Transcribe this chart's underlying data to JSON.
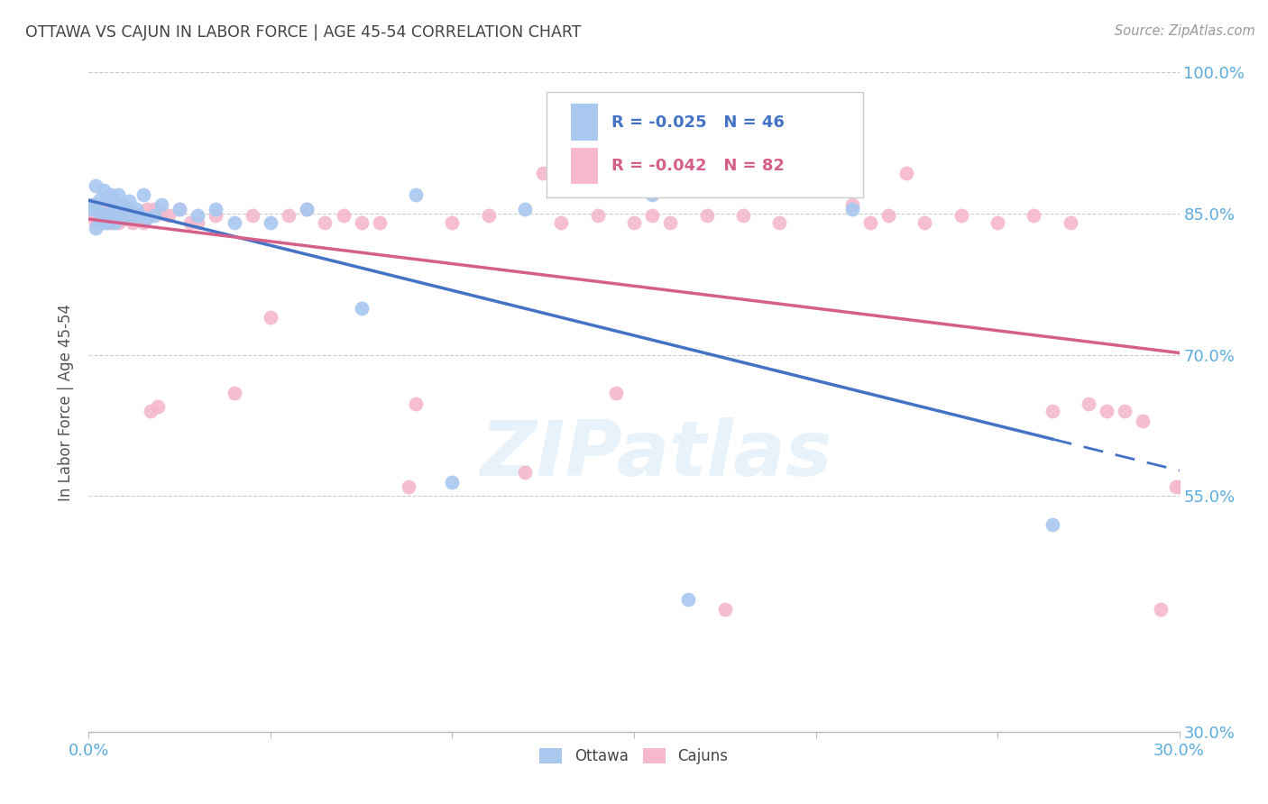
{
  "title": "OTTAWA VS CAJUN IN LABOR FORCE | AGE 45-54 CORRELATION CHART",
  "source_text": "Source: ZipAtlas.com",
  "ylabel": "In Labor Force | Age 45-54",
  "xlim": [
    0.0,
    0.3
  ],
  "ylim": [
    0.3,
    1.0
  ],
  "xticks": [
    0.0,
    0.05,
    0.1,
    0.15,
    0.2,
    0.25,
    0.3
  ],
  "xticklabels": [
    "0.0%",
    "",
    "",
    "",
    "",
    "",
    "30.0%"
  ],
  "yticks": [
    0.3,
    0.55,
    0.7,
    0.85,
    1.0
  ],
  "yticklabels": [
    "30.0%",
    "55.0%",
    "70.0%",
    "85.0%",
    "100.0%"
  ],
  "legend_R_ottawa": "-0.025",
  "legend_N_ottawa": "46",
  "legend_R_cajun": "-0.042",
  "legend_N_cajun": "82",
  "ottawa_color": "#a8c8f0",
  "cajun_color": "#f5b8cc",
  "ottawa_line_color": "#4472c4",
  "cajun_line_color": "#d4608a",
  "background_color": "#ffffff",
  "grid_color": "#cccccc",
  "axis_label_color": "#5badde",
  "title_color": "#444444",
  "watermark_text": "ZIPatlas",
  "ottawa_x": [
    0.001,
    0.001,
    0.002,
    0.002,
    0.002,
    0.003,
    0.003,
    0.003,
    0.004,
    0.004,
    0.004,
    0.005,
    0.005,
    0.005,
    0.006,
    0.006,
    0.007,
    0.007,
    0.007,
    0.008,
    0.008,
    0.009,
    0.009,
    0.01,
    0.011,
    0.012,
    0.013,
    0.014,
    0.015,
    0.016,
    0.018,
    0.02,
    0.025,
    0.03,
    0.035,
    0.04,
    0.05,
    0.06,
    0.075,
    0.09,
    0.1,
    0.12,
    0.155,
    0.165,
    0.21,
    0.265
  ],
  "ottawa_y": [
    0.86,
    0.855,
    0.88,
    0.855,
    0.835,
    0.865,
    0.85,
    0.84,
    0.875,
    0.85,
    0.84,
    0.865,
    0.848,
    0.84,
    0.87,
    0.85,
    0.86,
    0.845,
    0.84,
    0.87,
    0.855,
    0.86,
    0.845,
    0.855,
    0.863,
    0.845,
    0.855,
    0.848,
    0.87,
    0.845,
    0.848,
    0.86,
    0.855,
    0.848,
    0.855,
    0.84,
    0.84,
    0.855,
    0.75,
    0.87,
    0.565,
    0.855,
    0.87,
    0.44,
    0.855,
    0.52
  ],
  "cajun_x": [
    0.001,
    0.001,
    0.002,
    0.002,
    0.002,
    0.003,
    0.003,
    0.003,
    0.004,
    0.004,
    0.004,
    0.005,
    0.005,
    0.005,
    0.006,
    0.006,
    0.007,
    0.007,
    0.008,
    0.008,
    0.009,
    0.009,
    0.01,
    0.01,
    0.011,
    0.012,
    0.013,
    0.014,
    0.015,
    0.016,
    0.017,
    0.018,
    0.019,
    0.02,
    0.022,
    0.025,
    0.028,
    0.03,
    0.035,
    0.04,
    0.045,
    0.05,
    0.055,
    0.06,
    0.065,
    0.07,
    0.075,
    0.08,
    0.09,
    0.1,
    0.11,
    0.12,
    0.125,
    0.13,
    0.14,
    0.145,
    0.15,
    0.155,
    0.16,
    0.17,
    0.175,
    0.18,
    0.19,
    0.2,
    0.21,
    0.215,
    0.22,
    0.225,
    0.23,
    0.24,
    0.25,
    0.26,
    0.265,
    0.27,
    0.275,
    0.28,
    0.285,
    0.29,
    0.295,
    0.299,
    0.088,
    0.3
  ],
  "cajun_y": [
    0.86,
    0.85,
    0.86,
    0.845,
    0.84,
    0.855,
    0.848,
    0.85,
    0.86,
    0.845,
    0.855,
    0.85,
    0.843,
    0.848,
    0.858,
    0.84,
    0.855,
    0.848,
    0.85,
    0.84,
    0.855,
    0.843,
    0.848,
    0.858,
    0.855,
    0.84,
    0.845,
    0.848,
    0.84,
    0.855,
    0.64,
    0.855,
    0.645,
    0.85,
    0.848,
    0.855,
    0.84,
    0.84,
    0.848,
    0.66,
    0.848,
    0.74,
    0.848,
    0.855,
    0.84,
    0.848,
    0.84,
    0.84,
    0.648,
    0.84,
    0.848,
    0.575,
    0.893,
    0.84,
    0.848,
    0.66,
    0.84,
    0.848,
    0.84,
    0.848,
    0.43,
    0.848,
    0.84,
    0.893,
    0.86,
    0.84,
    0.848,
    0.893,
    0.84,
    0.848,
    0.84,
    0.848,
    0.64,
    0.84,
    0.648,
    0.64,
    0.64,
    0.63,
    0.43,
    0.56,
    0.56,
    0.56
  ]
}
